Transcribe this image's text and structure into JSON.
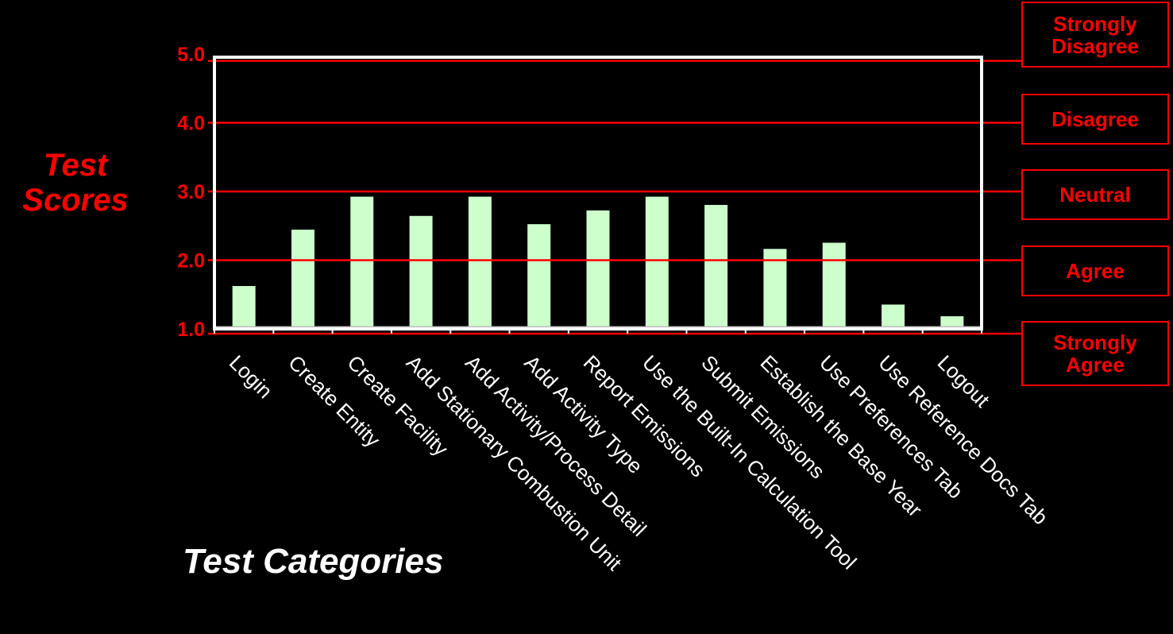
{
  "chart_data": {
    "type": "bar",
    "title": "",
    "ylabel_lines": [
      "Test",
      "Scores"
    ],
    "xlabel": "Test Categories",
    "ylim": [
      1.0,
      5.0
    ],
    "yticks": [
      "1.0",
      "2.0",
      "3.0",
      "4.0",
      "5.0"
    ],
    "categories": [
      "Login",
      "Create Entity",
      "Create Facility",
      "Add Stationary Combustion Unit",
      "Add Activity/Process Detail",
      "Add Activity Type",
      "Report Emissions",
      "Use the Built-In Calculation Tool",
      "Submit Emissions",
      "Establish the Base Year",
      "Use Preferences Tab",
      "Use Reference Docs Tab",
      "Logout"
    ],
    "values": [
      1.63,
      2.45,
      2.93,
      2.65,
      2.93,
      2.53,
      2.73,
      2.93,
      2.81,
      2.17,
      2.26,
      1.36,
      1.19
    ],
    "reference_lines": [
      1.0,
      2.0,
      3.0,
      4.0,
      4.9
    ],
    "legend": [
      {
        "lines": [
          "Strongly",
          "Disagree"
        ]
      },
      {
        "lines": [
          "Disagree"
        ]
      },
      {
        "lines": [
          "Neutral"
        ]
      },
      {
        "lines": [
          "Agree"
        ]
      },
      {
        "lines": [
          "Strongly",
          "Agree"
        ]
      }
    ],
    "colors": {
      "bar": "#ccffcc",
      "reference_line": "#ff0000",
      "axis": "#ffffff",
      "label": "#ff0000",
      "text": "#ffffff",
      "background": "#000000"
    }
  }
}
